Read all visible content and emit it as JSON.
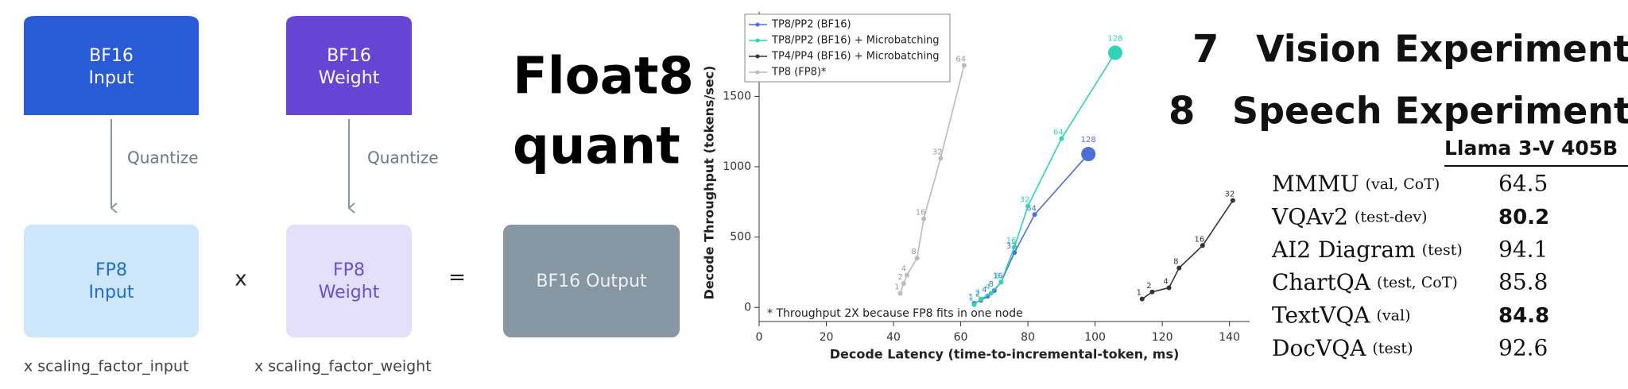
{
  "diagram": {
    "bf16_input": "BF16\nInput",
    "bf16_weight": "BF16\nWeight",
    "quantize_left": "Quantize",
    "quantize_right": "Quantize",
    "fp8_input": "FP8\nInput",
    "fp8_weight": "FP8\nWeight",
    "times": "x",
    "equals": "=",
    "bf16_output": "BF16 Output",
    "caption_input": "x scaling_factor_input",
    "caption_weight": "x scaling_factor_weight"
  },
  "headline": [
    "Float8",
    "quant"
  ],
  "chart_data": {
    "type": "line",
    "x_label": "Decode Latency (time-to-incremental-token, ms)",
    "y_label": "Decode Throughput (tokens/sec)",
    "annotation": "* Throughput 2X because FP8 fits in one node",
    "legend": "upper left",
    "xlim": [
      0,
      146
    ],
    "xticks": [
      0,
      20,
      40,
      60,
      80,
      100,
      120,
      140
    ],
    "ylim": [
      -100,
      2100
    ],
    "yticks": [
      0,
      500,
      1000,
      1500
    ],
    "series": [
      {
        "name": "TP8/PP2 (BF16)",
        "color": "#4a6fd8",
        "highlight_last": true,
        "x": [
          64,
          66,
          68,
          70,
          72,
          76,
          82,
          98
        ],
        "values": [
          30,
          50,
          80,
          120,
          180,
          390,
          660,
          1090
        ],
        "point_labels": [
          1,
          2,
          4,
          8,
          16,
          32,
          64,
          128
        ]
      },
      {
        "name": "TP8/PP2 (BF16) + Microbatching",
        "color": "#2ed4b5",
        "highlight_last": true,
        "x": [
          64,
          66,
          69,
          72,
          76,
          80,
          90,
          106
        ],
        "values": [
          20,
          60,
          100,
          180,
          430,
          720,
          1200,
          1810
        ],
        "point_labels": [
          1,
          2,
          4,
          8,
          16,
          32,
          64,
          128
        ]
      },
      {
        "name": "TP4/PP4 (BF16) + Microbatching",
        "color": "#333333",
        "highlight_last": false,
        "x": [
          114,
          117,
          122,
          125,
          132,
          141
        ],
        "values": [
          60,
          110,
          140,
          280,
          440,
          760
        ],
        "point_labels": [
          1,
          2,
          4,
          8,
          16,
          32
        ]
      },
      {
        "name": "TP8 (FP8)*",
        "color": "#bbbbbb",
        "highlight_last": false,
        "x": [
          42,
          43,
          44,
          47,
          49,
          54,
          61
        ],
        "values": [
          100,
          170,
          230,
          350,
          630,
          1060,
          1720
        ],
        "point_labels": [
          1,
          2,
          4,
          8,
          16,
          32,
          64
        ]
      }
    ]
  },
  "sections": [
    {
      "number": "7",
      "title": "Vision Experiments"
    },
    {
      "number": "8",
      "title": "Speech Experiments"
    }
  ],
  "table": {
    "header": "Llama 3-V 405B",
    "rows": [
      {
        "name": "MMMU",
        "note": "(val, CoT)",
        "value": "64.5",
        "bold": false
      },
      {
        "name": "VQAv2",
        "note": "(test-dev)",
        "value": "80.2",
        "bold": true
      },
      {
        "name": "AI2 Diagram",
        "note": "(test)",
        "value": "94.1",
        "bold": false
      },
      {
        "name": "ChartQA",
        "note": "(test, CoT)",
        "value": "85.8",
        "bold": false
      },
      {
        "name": "TextVQA",
        "note": "(val)",
        "value": "84.8",
        "bold": true
      },
      {
        "name": "DocVQA",
        "note": "(test)",
        "value": "92.6",
        "bold": false
      }
    ]
  }
}
